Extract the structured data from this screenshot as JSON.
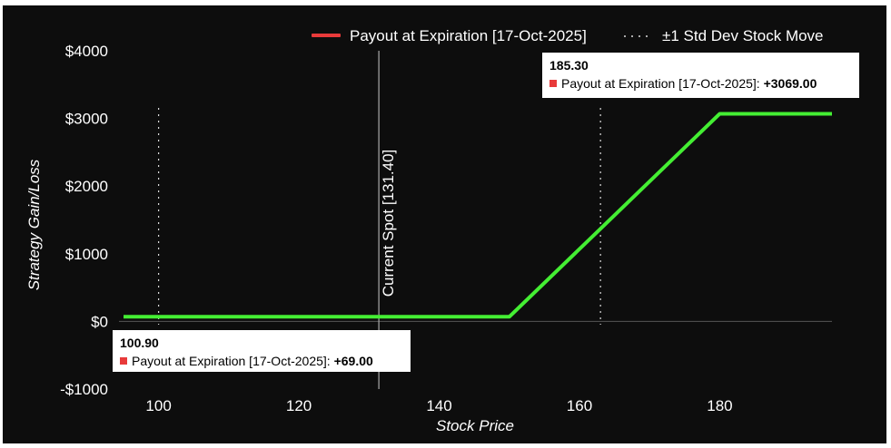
{
  "chart_data": {
    "type": "line",
    "xlabel": "Stock Price",
    "ylabel": "Strategy Gain/Loss",
    "xlim": [
      95,
      196
    ],
    "ylim": [
      -1000,
      4000
    ],
    "x_ticks": [
      100,
      120,
      140,
      160,
      180
    ],
    "y_ticks": [
      {
        "value": 4000,
        "label": "$4000"
      },
      {
        "value": 3000,
        "label": "$3000"
      },
      {
        "value": 2000,
        "label": "$2000"
      },
      {
        "value": 1000,
        "label": "$1000"
      },
      {
        "value": 0,
        "label": "$0"
      },
      {
        "value": -1000,
        "label": "-$1000"
      }
    ],
    "series": [
      {
        "name": "Payout at Expiration [17-Oct-2025]",
        "color": "#44ee33",
        "x": [
          95,
          150,
          180,
          196
        ],
        "y": [
          69,
          69,
          3069,
          3069
        ]
      }
    ],
    "std_dev_lines": {
      "name": "±1 Std Dev Stock Move",
      "x": [
        100,
        163
      ]
    },
    "spot_line": {
      "x": 131.4,
      "label": "Current Spot [131.40]"
    },
    "legend_position": "top-right",
    "grid": false
  },
  "tooltips": [
    {
      "x_label": "100.90",
      "series_label": "Payout at Expiration [17-Oct-2025]",
      "value": "+69.00"
    },
    {
      "x_label": "185.30",
      "series_label": "Payout at Expiration [17-Oct-2025]",
      "value": "+3069.00"
    }
  ],
  "colors": {
    "background": "#0d0d0d",
    "legend_payout_swatch": "#e83a3a",
    "tooltip_swatch": "#e83a3a",
    "zero_line": "#555555",
    "spot_line": "#aaaaaa",
    "std_dev_line": "#dddddd"
  }
}
